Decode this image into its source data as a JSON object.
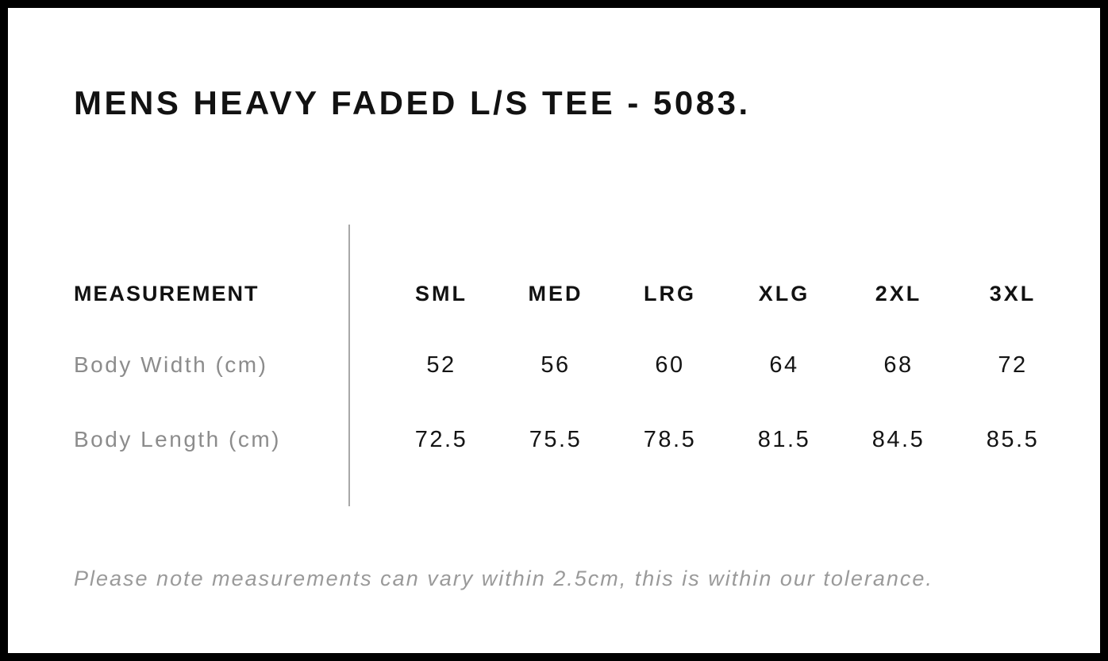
{
  "page": {
    "title": "MENS HEAVY FADED L/S TEE - 5083.",
    "tolerance_note": "Please note measurements can vary within 2.5cm, this is within our tolerance."
  },
  "size_chart": {
    "label_header": "MEASUREMENT",
    "size_headers": [
      "SML",
      "MED",
      "LRG",
      "XLG",
      "2XL",
      "3XL"
    ],
    "rows": [
      {
        "label": "Body Width (cm)",
        "values": [
          "52",
          "56",
          "60",
          "64",
          "68",
          "72"
        ]
      },
      {
        "label": "Body Length (cm)",
        "values": [
          "72.5",
          "75.5",
          "78.5",
          "81.5",
          "84.5",
          "85.5"
        ]
      }
    ]
  },
  "chart_data": {
    "type": "table",
    "title": "MENS HEAVY FADED L/S TEE - 5083.",
    "columns": [
      "MEASUREMENT",
      "SML",
      "MED",
      "LRG",
      "XLG",
      "2XL",
      "3XL"
    ],
    "rows": [
      [
        "Body Width (cm)",
        52,
        56,
        60,
        64,
        68,
        72
      ],
      [
        "Body Length (cm)",
        72.5,
        75.5,
        78.5,
        81.5,
        84.5,
        85.5
      ]
    ],
    "footnote": "Please note measurements can vary within 2.5cm, this is within our tolerance."
  },
  "colors": {
    "frame": "#000000",
    "background": "#ffffff",
    "heading_text": "#121212",
    "muted_text": "#8c8c8c",
    "note_text": "#9a9a9a",
    "divider": "#a8a8a8"
  }
}
